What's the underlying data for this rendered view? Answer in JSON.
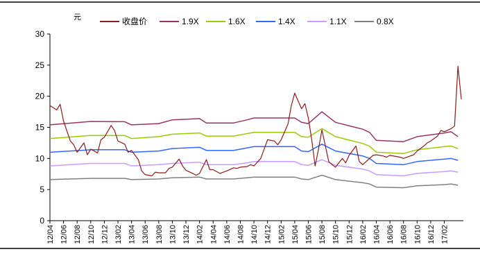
{
  "chart_data": {
    "type": "line",
    "title": "",
    "xlabel": "",
    "ylabel": "元",
    "ylim": [
      0,
      30
    ],
    "yticks": [
      0,
      5,
      10,
      15,
      20,
      25,
      30
    ],
    "grid": false,
    "legend_position": "top",
    "x_tick_labels": [
      "12/04",
      "12/06",
      "12/08",
      "12/10",
      "12/12",
      "13/02",
      "13/04",
      "13/06",
      "13/08",
      "13/10",
      "13/12",
      "14/02",
      "14/04",
      "14/06",
      "14/08",
      "14/10",
      "14/12",
      "15/02",
      "15/04",
      "15/06",
      "15/08",
      "15/10",
      "15/12",
      "16/02",
      "16/04",
      "16/06",
      "16/08",
      "16/10",
      "16/12",
      "17/02"
    ],
    "series": [
      {
        "name": "收盘价",
        "color": "#8b1a1a",
        "points": [
          [
            "12/04",
            18.5
          ],
          [
            "12/05",
            17.8
          ],
          [
            "12/05b",
            18.7
          ],
          [
            "12/06",
            16.0
          ],
          [
            "12/07",
            12.8
          ],
          [
            "12/07b",
            12.2
          ],
          [
            "12/08",
            11.0
          ],
          [
            "12/09",
            12.5
          ],
          [
            "12/09b",
            10.6
          ],
          [
            "12/10",
            11.5
          ],
          [
            "12/11",
            10.9
          ],
          [
            "12/11b",
            13.0
          ],
          [
            "12/12",
            13.4
          ],
          [
            "13/01",
            15.3
          ],
          [
            "13/01b",
            14.5
          ],
          [
            "13/02",
            12.8
          ],
          [
            "13/03",
            12.3
          ],
          [
            "13/03b",
            11.0
          ],
          [
            "13/04",
            11.3
          ],
          [
            "13/05",
            9.8
          ],
          [
            "13/05b",
            8.0
          ],
          [
            "13/06",
            7.4
          ],
          [
            "13/07",
            7.2
          ],
          [
            "13/07b",
            7.8
          ],
          [
            "13/08",
            7.7
          ],
          [
            "13/09",
            7.7
          ],
          [
            "13/09b",
            8.4
          ],
          [
            "13/10",
            8.6
          ],
          [
            "13/11",
            9.9
          ],
          [
            "13/11b",
            8.8
          ],
          [
            "13/12",
            8.1
          ],
          [
            "14/01",
            7.6
          ],
          [
            "14/01b",
            7.3
          ],
          [
            "14/02",
            7.6
          ],
          [
            "14/03",
            9.8
          ],
          [
            "14/03b",
            8.2
          ],
          [
            "14/04",
            8.2
          ],
          [
            "14/05",
            7.6
          ],
          [
            "14/05b",
            7.8
          ],
          [
            "14/06",
            8.0
          ],
          [
            "14/07",
            8.5
          ],
          [
            "14/07b",
            8.4
          ],
          [
            "14/08",
            8.6
          ],
          [
            "14/09",
            8.7
          ],
          [
            "14/09b",
            9.0
          ],
          [
            "14/10",
            8.8
          ],
          [
            "14/11",
            10.0
          ],
          [
            "14/11b",
            11.5
          ],
          [
            "14/12",
            13.0
          ],
          [
            "15/01",
            12.8
          ],
          [
            "15/01b",
            12.2
          ],
          [
            "15/02",
            13.0
          ],
          [
            "15/03",
            15.5
          ],
          [
            "15/03b",
            18.5
          ],
          [
            "15/04",
            20.5
          ],
          [
            "15/05",
            18.0
          ],
          [
            "15/05b",
            18.8
          ],
          [
            "15/06",
            16.5
          ],
          [
            "15/06b",
            13.0
          ],
          [
            "15/07",
            8.8
          ],
          [
            "15/07b",
            11.5
          ],
          [
            "15/08",
            14.6
          ],
          [
            "15/09",
            9.5
          ],
          [
            "15/09b",
            9.0
          ],
          [
            "15/10",
            8.6
          ],
          [
            "15/11",
            10.0
          ],
          [
            "15/11b",
            9.3
          ],
          [
            "15/12",
            10.5
          ],
          [
            "16/01",
            12.0
          ],
          [
            "16/01b",
            9.5
          ],
          [
            "16/02",
            9.0
          ],
          [
            "16/03",
            10.0
          ],
          [
            "16/03b",
            10.5
          ],
          [
            "16/04",
            10.6
          ],
          [
            "16/05",
            10.4
          ],
          [
            "16/05b",
            10.2
          ],
          [
            "16/06",
            10.5
          ],
          [
            "16/07",
            10.3
          ],
          [
            "16/07b",
            10.2
          ],
          [
            "16/08",
            10.0
          ],
          [
            "16/09",
            10.4
          ],
          [
            "16/09b",
            10.6
          ],
          [
            "16/10",
            11.2
          ],
          [
            "16/11",
            12.0
          ],
          [
            "16/11b",
            12.5
          ],
          [
            "16/12",
            12.8
          ],
          [
            "17/01",
            13.6
          ],
          [
            "17/01b",
            14.5
          ],
          [
            "17/02",
            14.3
          ],
          [
            "17/03",
            14.8
          ],
          [
            "17/03b",
            15.2
          ],
          [
            "17/04",
            24.8
          ],
          [
            "17/04b",
            19.5
          ]
        ]
      },
      {
        "name": "1.9X",
        "color": "#993366",
        "points": [
          [
            "12/04",
            15.4
          ],
          [
            "12/10",
            15.95
          ],
          [
            "13/03",
            15.9
          ],
          [
            "13/04",
            15.4
          ],
          [
            "13/08",
            15.6
          ],
          [
            "13/10",
            16.2
          ],
          [
            "14/02",
            16.4
          ],
          [
            "14/03",
            15.7
          ],
          [
            "14/07",
            15.7
          ],
          [
            "14/09",
            16.2
          ],
          [
            "14/10",
            16.5
          ],
          [
            "15/04",
            16.5
          ],
          [
            "15/05",
            15.8
          ],
          [
            "15/06",
            15.6
          ],
          [
            "15/08",
            17.5
          ],
          [
            "15/10",
            15.8
          ],
          [
            "16/02",
            14.7
          ],
          [
            "16/03",
            14.2
          ],
          [
            "16/04",
            12.9
          ],
          [
            "16/08",
            12.7
          ],
          [
            "16/10",
            13.5
          ],
          [
            "17/02",
            14.1
          ],
          [
            "17/03",
            14.3
          ],
          [
            "17/04",
            13.5
          ]
        ]
      },
      {
        "name": "1.6X",
        "color": "#99cc00",
        "points": [
          [
            "12/04",
            13.2
          ],
          [
            "12/10",
            13.7
          ],
          [
            "13/03",
            13.7
          ],
          [
            "13/04",
            13.2
          ],
          [
            "13/08",
            13.5
          ],
          [
            "13/10",
            13.9
          ],
          [
            "14/02",
            14.1
          ],
          [
            "14/03",
            13.6
          ],
          [
            "14/07",
            13.6
          ],
          [
            "14/09",
            14.0
          ],
          [
            "14/10",
            14.2
          ],
          [
            "15/04",
            14.2
          ],
          [
            "15/05",
            13.5
          ],
          [
            "15/06",
            13.4
          ],
          [
            "15/08",
            14.8
          ],
          [
            "15/10",
            13.5
          ],
          [
            "16/02",
            12.4
          ],
          [
            "16/03",
            12.0
          ],
          [
            "16/04",
            11.0
          ],
          [
            "16/08",
            10.8
          ],
          [
            "16/10",
            11.4
          ],
          [
            "17/02",
            11.9
          ],
          [
            "17/03",
            12.0
          ],
          [
            "17/04",
            11.6
          ]
        ]
      },
      {
        "name": "1.4X",
        "color": "#3366ff",
        "points": [
          [
            "12/04",
            11.0
          ],
          [
            "12/10",
            11.4
          ],
          [
            "13/03",
            11.4
          ],
          [
            "13/04",
            11.0
          ],
          [
            "13/08",
            11.2
          ],
          [
            "13/10",
            11.6
          ],
          [
            "14/02",
            11.8
          ],
          [
            "14/03",
            11.3
          ],
          [
            "14/07",
            11.3
          ],
          [
            "14/09",
            11.7
          ],
          [
            "14/10",
            11.9
          ],
          [
            "15/04",
            11.9
          ],
          [
            "15/05",
            11.2
          ],
          [
            "15/06",
            11.1
          ],
          [
            "15/08",
            12.3
          ],
          [
            "15/10",
            11.2
          ],
          [
            "16/02",
            10.4
          ],
          [
            "16/03",
            10.0
          ],
          [
            "16/04",
            9.2
          ],
          [
            "16/08",
            9.0
          ],
          [
            "16/10",
            9.5
          ],
          [
            "17/02",
            9.9
          ],
          [
            "17/03",
            10.0
          ],
          [
            "17/04",
            9.7
          ]
        ]
      },
      {
        "name": "1.1X",
        "color": "#cc99ff",
        "points": [
          [
            "12/04",
            8.8
          ],
          [
            "12/10",
            9.2
          ],
          [
            "13/03",
            9.2
          ],
          [
            "13/04",
            8.8
          ],
          [
            "13/08",
            9.0
          ],
          [
            "13/10",
            9.2
          ],
          [
            "14/02",
            9.4
          ],
          [
            "14/03",
            9.0
          ],
          [
            "14/07",
            9.0
          ],
          [
            "14/09",
            9.3
          ],
          [
            "14/10",
            9.5
          ],
          [
            "15/04",
            9.5
          ],
          [
            "15/05",
            9.0
          ],
          [
            "15/06",
            8.9
          ],
          [
            "15/08",
            9.8
          ],
          [
            "15/10",
            8.9
          ],
          [
            "16/02",
            8.3
          ],
          [
            "16/03",
            8.0
          ],
          [
            "16/04",
            7.4
          ],
          [
            "16/08",
            7.2
          ],
          [
            "16/10",
            7.6
          ],
          [
            "17/02",
            7.9
          ],
          [
            "17/03",
            8.0
          ],
          [
            "17/04",
            7.8
          ]
        ]
      },
      {
        "name": "0.8X",
        "color": "#808080",
        "points": [
          [
            "12/04",
            6.6
          ],
          [
            "12/10",
            6.8
          ],
          [
            "13/03",
            6.8
          ],
          [
            "13/04",
            6.6
          ],
          [
            "13/08",
            6.7
          ],
          [
            "13/10",
            6.9
          ],
          [
            "14/02",
            7.0
          ],
          [
            "14/03",
            6.7
          ],
          [
            "14/07",
            6.7
          ],
          [
            "14/09",
            6.9
          ],
          [
            "14/10",
            7.0
          ],
          [
            "15/04",
            7.0
          ],
          [
            "15/05",
            6.7
          ],
          [
            "15/06",
            6.6
          ],
          [
            "15/08",
            7.3
          ],
          [
            "15/10",
            6.6
          ],
          [
            "16/02",
            6.1
          ],
          [
            "16/03",
            5.9
          ],
          [
            "16/04",
            5.4
          ],
          [
            "16/08",
            5.3
          ],
          [
            "16/10",
            5.6
          ],
          [
            "17/02",
            5.8
          ],
          [
            "17/03",
            5.9
          ],
          [
            "17/04",
            5.7
          ]
        ]
      }
    ]
  }
}
